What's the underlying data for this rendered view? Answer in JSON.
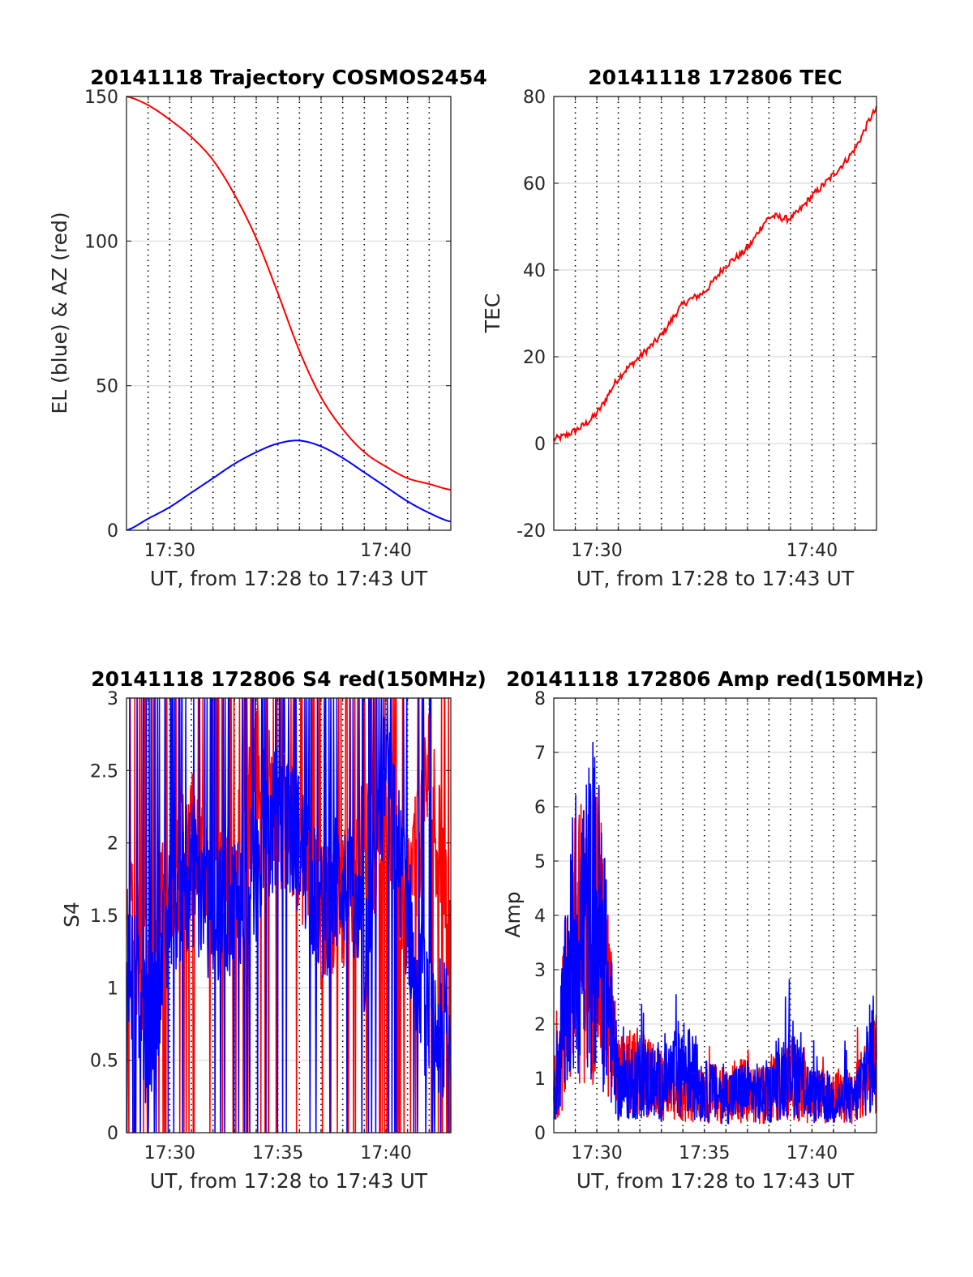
{
  "figure": {
    "background": "#ffffff",
    "colors": {
      "red": "#ff0000",
      "blue": "#0000ff",
      "grid": "#d9d9d9",
      "axis": "#262626",
      "vgrid": "#000000"
    }
  },
  "chart_data": [
    {
      "type": "line",
      "title": "20141118 Trajectory COSMOS2454",
      "xlabel": "UT, from 17:28 to 17:43 UT",
      "ylabel": "EL (blue) & AZ (red)",
      "xlim": [
        "17:28",
        "17:43"
      ],
      "ylim": [
        0,
        150
      ],
      "xticks": [
        "17:30",
        "17:40"
      ],
      "yticks": [
        0,
        50,
        100,
        150
      ],
      "grid": "dotted vertical every minute, solid horizontal at y ticks",
      "x": [
        "17:28",
        "17:29",
        "17:30",
        "17:31",
        "17:32",
        "17:33",
        "17:34",
        "17:35",
        "17:36",
        "17:37",
        "17:38",
        "17:39",
        "17:40",
        "17:41",
        "17:42",
        "17:43"
      ],
      "series": [
        {
          "color": "red",
          "values": [
            150,
            147,
            142,
            136,
            128,
            116,
            101,
            82,
            62,
            46,
            35,
            27,
            22,
            18,
            16,
            14
          ]
        },
        {
          "color": "blue",
          "values": [
            0,
            4,
            8,
            13,
            18,
            23,
            27,
            30,
            31,
            29,
            25,
            20,
            15,
            10,
            6,
            3
          ]
        }
      ]
    },
    {
      "type": "line",
      "title": "20141118 172806 TEC",
      "xlabel": "UT, from 17:28 to 17:43 UT",
      "ylabel": "TEC",
      "xlim": [
        "17:28",
        "17:43"
      ],
      "ylim": [
        -20,
        80
      ],
      "xticks": [
        "17:30",
        "17:40"
      ],
      "yticks": [
        -20,
        0,
        20,
        40,
        60,
        80
      ],
      "grid": "dotted vertical every minute, solid horizontal at y ticks",
      "x": [
        "17:28",
        "17:29",
        "17:30",
        "17:31",
        "17:32",
        "17:33",
        "17:34",
        "17:35",
        "17:36",
        "17:37",
        "17:38",
        "17:39",
        "17:40",
        "17:41",
        "17:42",
        "17:43"
      ],
      "series": [
        {
          "color": "red",
          "values": [
            1,
            3,
            7,
            15,
            20,
            25,
            32,
            35,
            41,
            45,
            52,
            52,
            57,
            62,
            68,
            77
          ]
        }
      ]
    },
    {
      "type": "line",
      "title": "20141118 172806 S4 red(150MHz)",
      "xlabel": "UT, from 17:28 to 17:43 UT",
      "ylabel": "S4",
      "xlim": [
        "17:28",
        "17:43"
      ],
      "ylim": [
        0,
        3
      ],
      "xticks": [
        "17:30",
        "17:35",
        "17:40"
      ],
      "yticks": [
        0,
        0.5,
        1,
        1.5,
        2,
        2.5,
        3
      ],
      "grid": "dotted vertical every minute, solid horizontal at y ticks",
      "x": [
        "17:28",
        "17:29",
        "17:30",
        "17:31",
        "17:32",
        "17:33",
        "17:34",
        "17:35",
        "17:36",
        "17:37",
        "17:38",
        "17:39",
        "17:40",
        "17:41",
        "17:42",
        "17:43"
      ],
      "series": [
        {
          "color": "red",
          "values": [
            1.5,
            1.0,
            1.8,
            2.0,
            1.5,
            1.8,
            2.5,
            2.2,
            2.0,
            1.5,
            1.6,
            2.0,
            2.0,
            1.6,
            2.5,
            1.3
          ]
        },
        {
          "color": "blue",
          "values": [
            1.3,
            0.6,
            1.5,
            1.8,
            1.4,
            1.6,
            1.8,
            2.2,
            2.0,
            1.5,
            1.8,
            1.2,
            2.5,
            1.5,
            0.7,
            0.7
          ]
        }
      ]
    },
    {
      "type": "line",
      "title": "20141118 172806 Amp red(150MHz)",
      "xlabel": "UT, from 17:28 to 17:43 UT",
      "ylabel": "Amp",
      "xlim": [
        "17:28",
        "17:43"
      ],
      "ylim": [
        0,
        8
      ],
      "xticks": [
        "17:30",
        "17:35",
        "17:40"
      ],
      "yticks": [
        0,
        1,
        2,
        3,
        4,
        5,
        6,
        7,
        8
      ],
      "grid": "dotted vertical every minute, solid horizontal at y ticks",
      "x": [
        "17:28",
        "17:29",
        "17:30",
        "17:31",
        "17:32",
        "17:33",
        "17:34",
        "17:35",
        "17:36",
        "17:37",
        "17:38",
        "17:39",
        "17:40",
        "17:41",
        "17:42",
        "17:43"
      ],
      "series": [
        {
          "color": "red",
          "values": [
            0.8,
            4.0,
            4.5,
            1.2,
            1.3,
            1.0,
            0.9,
            0.8,
            0.9,
            0.9,
            0.8,
            1.2,
            0.8,
            0.8,
            0.8,
            1.5
          ]
        },
        {
          "color": "blue",
          "values": [
            0.8,
            4.3,
            4.8,
            1.0,
            1.2,
            1.0,
            1.5,
            0.9,
            0.8,
            0.9,
            0.8,
            1.5,
            0.8,
            0.7,
            0.7,
            2.0
          ]
        }
      ]
    }
  ]
}
